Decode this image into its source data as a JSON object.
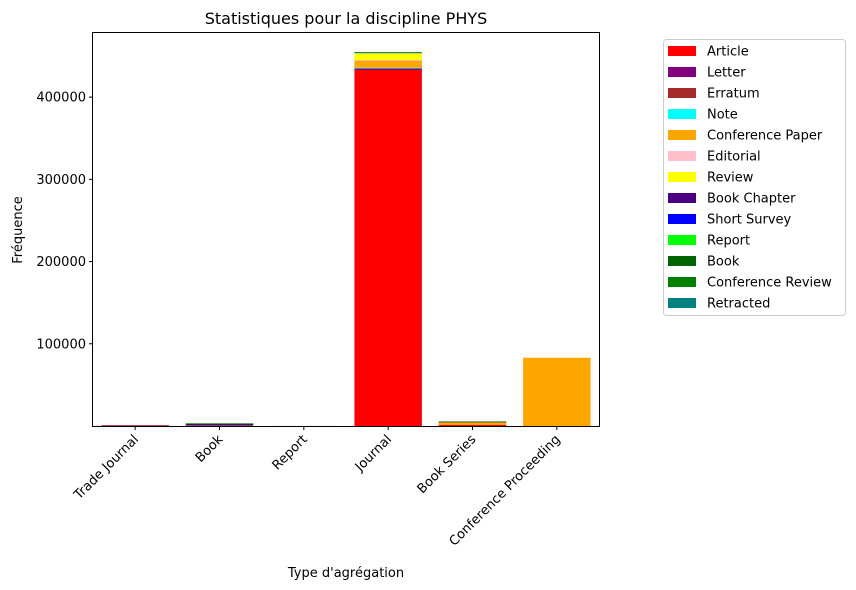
{
  "chart_data": {
    "type": "bar",
    "stacked": true,
    "title": "Statistiques pour la discipline PHYS",
    "xlabel": "Type d'agrégation",
    "ylabel": "Fréquence",
    "categories": [
      "Trade Journal",
      "Book",
      "Report",
      "Journal",
      "Book Series",
      "Conference Proceeding"
    ],
    "yticks": [
      100000,
      200000,
      300000,
      400000
    ],
    "ytick_labels": [
      "100000",
      "200000",
      "300000",
      "400000"
    ],
    "ylim": [
      0,
      478000
    ],
    "legend_position": "outside-top-right",
    "series": [
      {
        "name": "Article",
        "color": "#ff0000",
        "values": [
          800,
          200,
          50,
          433000,
          1500,
          0
        ]
      },
      {
        "name": "Letter",
        "color": "#800080",
        "values": [
          0,
          0,
          0,
          2000,
          0,
          0
        ]
      },
      {
        "name": "Erratum",
        "color": "#a52a2a",
        "values": [
          100,
          0,
          0,
          500,
          0,
          0
        ]
      },
      {
        "name": "Note",
        "color": "#00ffff",
        "values": [
          0,
          0,
          0,
          300,
          0,
          0
        ]
      },
      {
        "name": "Conference Paper",
        "color": "#ffa500",
        "values": [
          0,
          0,
          0,
          9000,
          3500,
          83000
        ]
      },
      {
        "name": "Editorial",
        "color": "#ffc0cb",
        "values": [
          0,
          0,
          0,
          500,
          0,
          0
        ]
      },
      {
        "name": "Review",
        "color": "#ffff00",
        "values": [
          0,
          200,
          0,
          9000,
          200,
          0
        ]
      },
      {
        "name": "Book Chapter",
        "color": "#4b0082",
        "values": [
          0,
          2500,
          0,
          0,
          200,
          0
        ]
      },
      {
        "name": "Short Survey",
        "color": "#0000ff",
        "values": [
          0,
          0,
          0,
          200,
          0,
          0
        ]
      },
      {
        "name": "Report",
        "color": "#00ff00",
        "values": [
          0,
          0,
          0,
          0,
          0,
          0
        ]
      },
      {
        "name": "Book",
        "color": "#006400",
        "values": [
          0,
          300,
          0,
          0,
          100,
          0
        ]
      },
      {
        "name": "Conference Review",
        "color": "#008000",
        "values": [
          0,
          0,
          0,
          100,
          0,
          0
        ]
      },
      {
        "name": "Retracted",
        "color": "#008080",
        "values": [
          0,
          0,
          0,
          20,
          0,
          0
        ]
      }
    ]
  }
}
